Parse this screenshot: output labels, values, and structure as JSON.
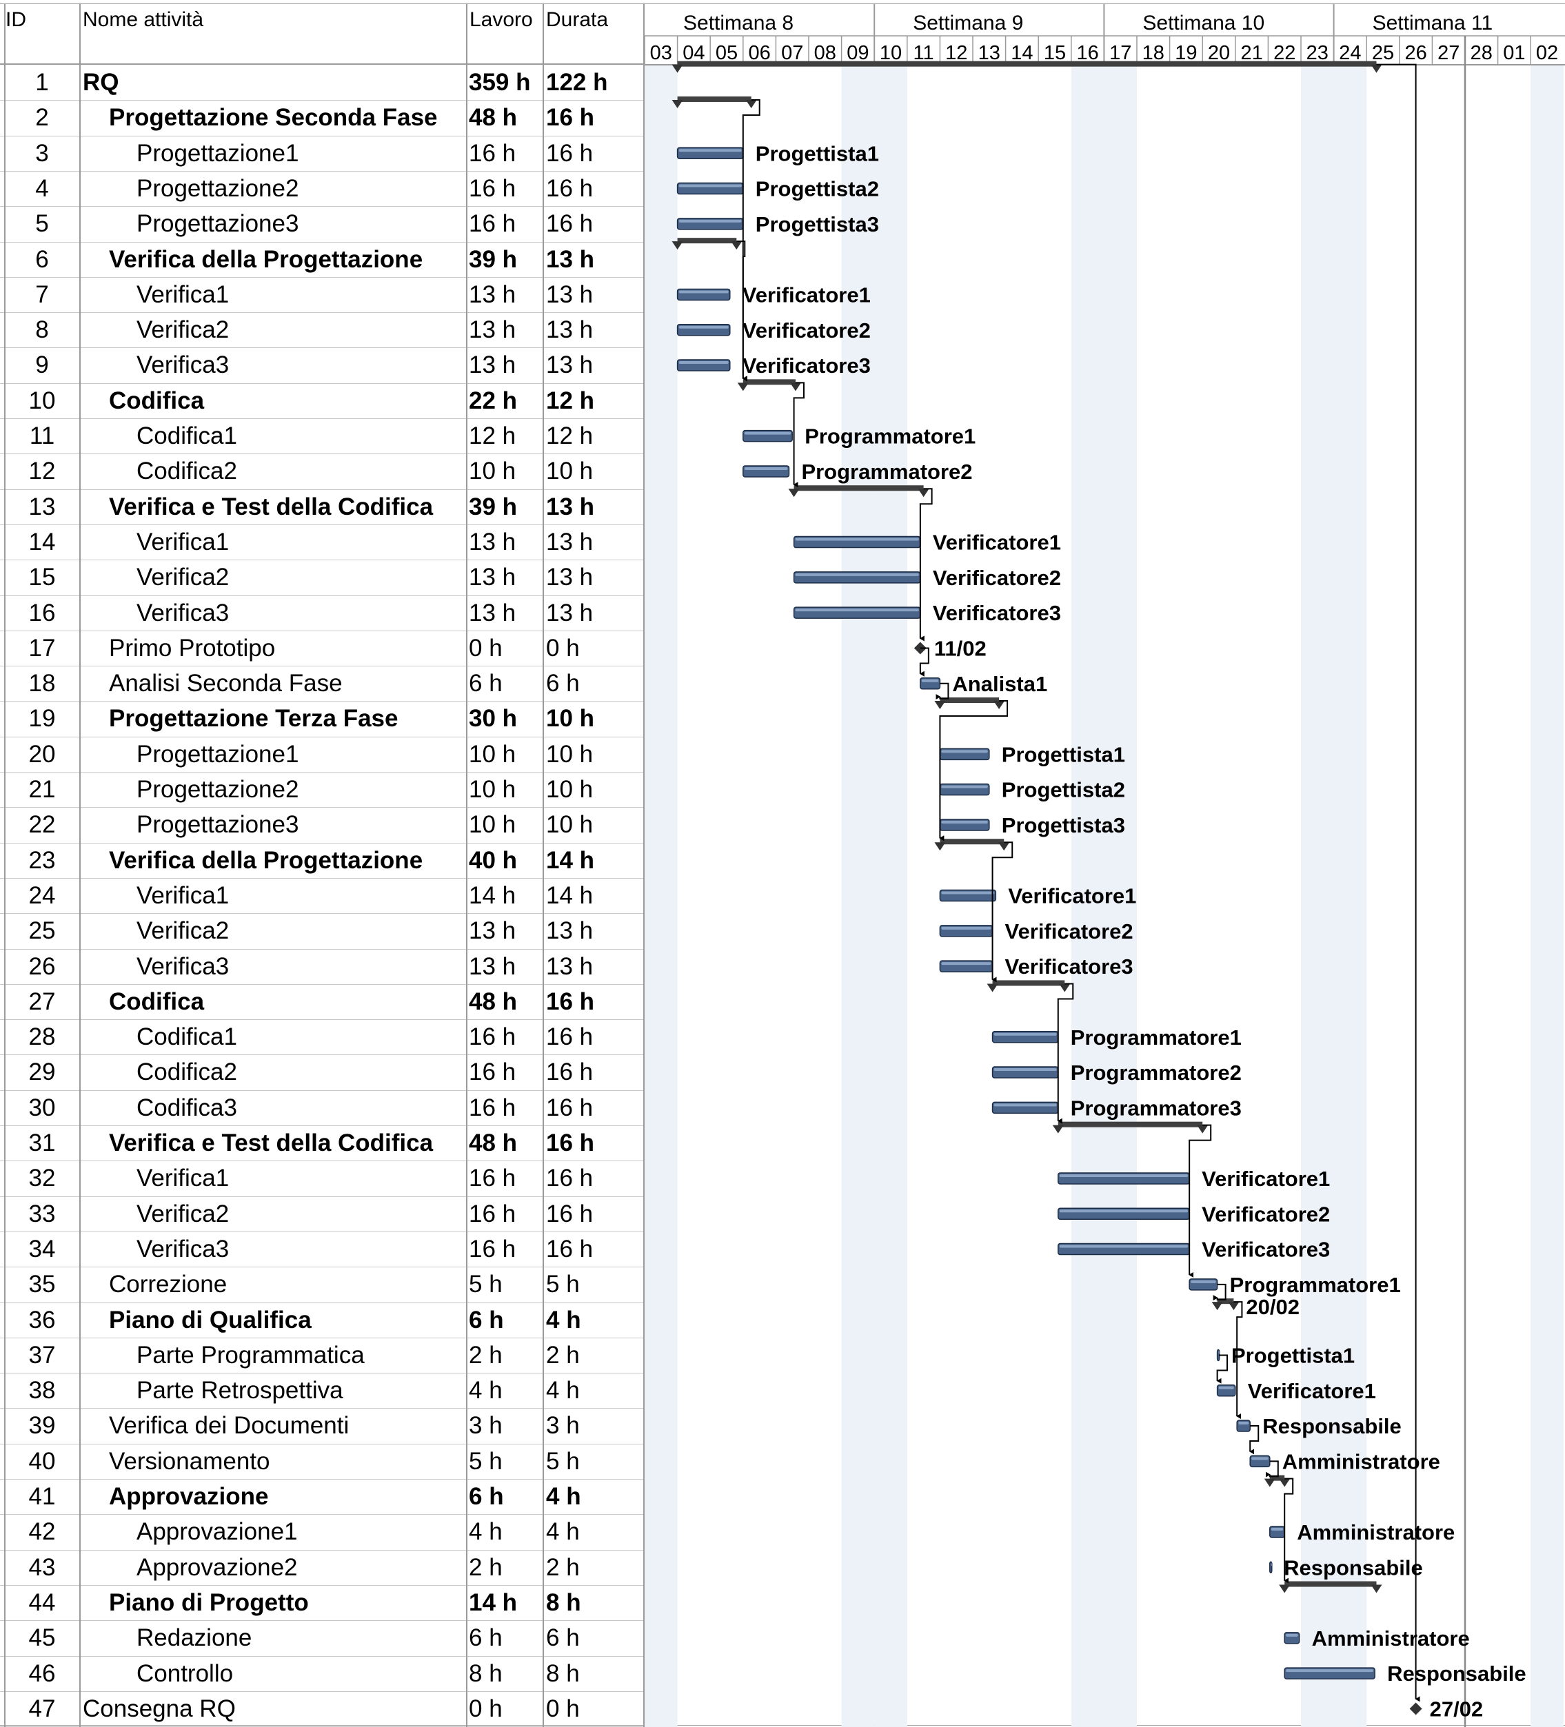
{
  "columns": {
    "id": "ID",
    "name": "Nome attività",
    "work": "Lavoro",
    "duration": "Durata"
  },
  "timeline": {
    "weeks": [
      "Settimana 8",
      "Settimana 9",
      "Settimana 10",
      "Settimana 11"
    ],
    "days": [
      "03",
      "04",
      "05",
      "06",
      "07",
      "08",
      "09",
      "10",
      "11",
      "12",
      "13",
      "14",
      "15",
      "16",
      "17",
      "18",
      "19",
      "20",
      "21",
      "22",
      "23",
      "24",
      "25",
      "26",
      "27",
      "28",
      "01",
      "02"
    ],
    "weekend_columns": [
      0,
      6,
      7,
      13,
      14,
      20,
      21,
      27
    ],
    "today_column": 25
  },
  "chart_data": {
    "type": "gantt",
    "x_unit": "day",
    "tasks": [
      {
        "id": "1",
        "name": "RQ",
        "work": "359 h",
        "duration": "122 h",
        "level": 0,
        "summary": true,
        "start": 1.0,
        "end": 22.3,
        "label": ""
      },
      {
        "id": "2",
        "name": "Progettazione Seconda Fase",
        "work": "48 h",
        "duration": "16 h",
        "level": 1,
        "summary": true,
        "start": 1.0,
        "end": 3.25,
        "label": ""
      },
      {
        "id": "3",
        "name": "Progettazione1",
        "work": "16 h",
        "duration": "16 h",
        "level": 2,
        "summary": false,
        "start": 1.0,
        "end": 3.0,
        "label": "Progettista1"
      },
      {
        "id": "4",
        "name": "Progettazione2",
        "work": "16 h",
        "duration": "16 h",
        "level": 2,
        "summary": false,
        "start": 1.0,
        "end": 3.0,
        "label": "Progettista2"
      },
      {
        "id": "5",
        "name": "Progettazione3",
        "work": "16 h",
        "duration": "16 h",
        "level": 2,
        "summary": false,
        "start": 1.0,
        "end": 3.0,
        "label": "Progettista3"
      },
      {
        "id": "6",
        "name": "Verifica della Progettazione",
        "work": "39 h",
        "duration": "13 h",
        "level": 1,
        "summary": true,
        "start": 1.0,
        "end": 2.8,
        "label": ""
      },
      {
        "id": "7",
        "name": "Verifica1",
        "work": "13 h",
        "duration": "13 h",
        "level": 2,
        "summary": false,
        "start": 1.0,
        "end": 2.6,
        "label": "Verificatore1"
      },
      {
        "id": "8",
        "name": "Verifica2",
        "work": "13 h",
        "duration": "13 h",
        "level": 2,
        "summary": false,
        "start": 1.0,
        "end": 2.6,
        "label": "Verificatore2"
      },
      {
        "id": "9",
        "name": "Verifica3",
        "work": "13 h",
        "duration": "13 h",
        "level": 2,
        "summary": false,
        "start": 1.0,
        "end": 2.6,
        "label": "Verificatore3"
      },
      {
        "id": "10",
        "name": "Codifica",
        "work": "22 h",
        "duration": "12 h",
        "level": 1,
        "summary": true,
        "start": 3.0,
        "end": 4.6,
        "label": ""
      },
      {
        "id": "11",
        "name": "Codifica1",
        "work": "12 h",
        "duration": "12 h",
        "level": 2,
        "summary": false,
        "start": 3.0,
        "end": 4.5,
        "label": "Programmatore1"
      },
      {
        "id": "12",
        "name": "Codifica2",
        "work": "10 h",
        "duration": "10 h",
        "level": 2,
        "summary": false,
        "start": 3.0,
        "end": 4.4,
        "label": "Programmatore2"
      },
      {
        "id": "13",
        "name": "Verifica e Test della Codifica",
        "work": "39 h",
        "duration": "13 h",
        "level": 1,
        "summary": true,
        "start": 4.55,
        "end": 8.5,
        "label": ""
      },
      {
        "id": "14",
        "name": "Verifica1",
        "work": "13 h",
        "duration": "13 h",
        "level": 2,
        "summary": false,
        "start": 4.55,
        "end": 8.4,
        "label": "Verificatore1"
      },
      {
        "id": "15",
        "name": "Verifica2",
        "work": "13 h",
        "duration": "13 h",
        "level": 2,
        "summary": false,
        "start": 4.55,
        "end": 8.4,
        "label": "Verificatore2"
      },
      {
        "id": "16",
        "name": "Verifica3",
        "work": "13 h",
        "duration": "13 h",
        "level": 2,
        "summary": false,
        "start": 4.55,
        "end": 8.4,
        "label": "Verificatore3"
      },
      {
        "id": "17",
        "name": "Primo Prototipo",
        "work": "0 h",
        "duration": "0 h",
        "level": 1,
        "summary": false,
        "milestone": true,
        "start": 8.4,
        "end": 8.4,
        "label": "11/02"
      },
      {
        "id": "18",
        "name": "Analisi Seconda Fase",
        "work": "6 h",
        "duration": "6 h",
        "level": 1,
        "summary": false,
        "start": 8.4,
        "end": 9.0,
        "label": "Analista1"
      },
      {
        "id": "19",
        "name": "Progettazione Terza Fase",
        "work": "30 h",
        "duration": "10 h",
        "level": 1,
        "summary": true,
        "start": 9.0,
        "end": 10.8,
        "label": ""
      },
      {
        "id": "20",
        "name": "Progettazione1",
        "work": "10 h",
        "duration": "10 h",
        "level": 2,
        "summary": false,
        "start": 9.0,
        "end": 10.5,
        "label": "Progettista1"
      },
      {
        "id": "21",
        "name": "Progettazione2",
        "work": "10 h",
        "duration": "10 h",
        "level": 2,
        "summary": false,
        "start": 9.0,
        "end": 10.5,
        "label": "Progettista2"
      },
      {
        "id": "22",
        "name": "Progettazione3",
        "work": "10 h",
        "duration": "10 h",
        "level": 2,
        "summary": false,
        "start": 9.0,
        "end": 10.5,
        "label": "Progettista3"
      },
      {
        "id": "23",
        "name": "Verifica della Progettazione",
        "work": "40 h",
        "duration": "14 h",
        "level": 1,
        "summary": true,
        "start": 9.0,
        "end": 10.95,
        "label": ""
      },
      {
        "id": "24",
        "name": "Verifica1",
        "work": "14 h",
        "duration": "14 h",
        "level": 2,
        "summary": false,
        "start": 9.0,
        "end": 10.7,
        "label": "Verificatore1"
      },
      {
        "id": "25",
        "name": "Verifica2",
        "work": "13 h",
        "duration": "13 h",
        "level": 2,
        "summary": false,
        "start": 9.0,
        "end": 10.6,
        "label": "Verificatore2"
      },
      {
        "id": "26",
        "name": "Verifica3",
        "work": "13 h",
        "duration": "13 h",
        "level": 2,
        "summary": false,
        "start": 9.0,
        "end": 10.6,
        "label": "Verificatore3"
      },
      {
        "id": "27",
        "name": "Codifica",
        "work": "48 h",
        "duration": "16 h",
        "level": 1,
        "summary": true,
        "start": 10.6,
        "end": 12.8,
        "label": ""
      },
      {
        "id": "28",
        "name": "Codifica1",
        "work": "16 h",
        "duration": "16 h",
        "level": 2,
        "summary": false,
        "start": 10.6,
        "end": 12.6,
        "label": "Programmatore1"
      },
      {
        "id": "29",
        "name": "Codifica2",
        "work": "16 h",
        "duration": "16 h",
        "level": 2,
        "summary": false,
        "start": 10.6,
        "end": 12.6,
        "label": "Programmatore2"
      },
      {
        "id": "30",
        "name": "Codifica3",
        "work": "16 h",
        "duration": "16 h",
        "level": 2,
        "summary": false,
        "start": 10.6,
        "end": 12.6,
        "label": "Programmatore3"
      },
      {
        "id": "31",
        "name": "Verifica e Test della Codifica",
        "work": "48 h",
        "duration": "16 h",
        "level": 1,
        "summary": true,
        "start": 12.6,
        "end": 17.0,
        "label": ""
      },
      {
        "id": "32",
        "name": "Verifica1",
        "work": "16 h",
        "duration": "16 h",
        "level": 2,
        "summary": false,
        "start": 12.6,
        "end": 16.6,
        "label": "Verificatore1"
      },
      {
        "id": "33",
        "name": "Verifica2",
        "work": "16 h",
        "duration": "16 h",
        "level": 2,
        "summary": false,
        "start": 12.6,
        "end": 16.6,
        "label": "Verificatore2"
      },
      {
        "id": "34",
        "name": "Verifica3",
        "work": "16 h",
        "duration": "16 h",
        "level": 2,
        "summary": false,
        "start": 12.6,
        "end": 16.6,
        "label": "Verificatore3"
      },
      {
        "id": "35",
        "name": "Correzione",
        "work": "5 h",
        "duration": "5 h",
        "level": 1,
        "summary": false,
        "start": 16.6,
        "end": 17.45,
        "label": "Programmatore1"
      },
      {
        "id": "36",
        "name": "Piano di Qualifica",
        "work": "6 h",
        "duration": "4 h",
        "level": 1,
        "summary": true,
        "start": 17.45,
        "end": 17.95,
        "label": "20/02"
      },
      {
        "id": "37",
        "name": "Parte Programmatica",
        "work": "2 h",
        "duration": "2 h",
        "level": 2,
        "summary": false,
        "start": 17.45,
        "end": 17.5,
        "label": "Progettista1"
      },
      {
        "id": "38",
        "name": "Parte Retrospettiva",
        "work": "4 h",
        "duration": "4 h",
        "level": 2,
        "summary": false,
        "start": 17.45,
        "end": 18.0,
        "label": "Verificatore1"
      },
      {
        "id": "39",
        "name": "Verifica dei Documenti",
        "work": "3 h",
        "duration": "3 h",
        "level": 1,
        "summary": false,
        "start": 18.05,
        "end": 18.45,
        "label": "Responsabile"
      },
      {
        "id": "40",
        "name": "Versionamento",
        "work": "5 h",
        "duration": "5 h",
        "level": 1,
        "summary": false,
        "start": 18.45,
        "end": 19.05,
        "label": "Amministratore"
      },
      {
        "id": "41",
        "name": "Approvazione",
        "work": "6 h",
        "duration": "4 h",
        "level": 1,
        "summary": true,
        "start": 19.05,
        "end": 19.5,
        "label": ""
      },
      {
        "id": "42",
        "name": "Approvazione1",
        "work": "4 h",
        "duration": "4 h",
        "level": 2,
        "summary": false,
        "start": 19.05,
        "end": 19.5,
        "label": "Amministratore"
      },
      {
        "id": "43",
        "name": "Approvazione2",
        "work": "2 h",
        "duration": "2 h",
        "level": 2,
        "summary": false,
        "start": 19.05,
        "end": 19.1,
        "label": "Responsabile"
      },
      {
        "id": "44",
        "name": "Piano di Progetto",
        "work": "14 h",
        "duration": "8 h",
        "level": 1,
        "summary": true,
        "start": 19.5,
        "end": 22.3,
        "label": ""
      },
      {
        "id": "45",
        "name": "Redazione",
        "work": "6 h",
        "duration": "6 h",
        "level": 2,
        "summary": false,
        "start": 19.5,
        "end": 19.95,
        "label": "Amministratore"
      },
      {
        "id": "46",
        "name": "Controllo",
        "work": "8 h",
        "duration": "8 h",
        "level": 2,
        "summary": false,
        "start": 19.5,
        "end": 22.25,
        "label": "Responsabile"
      },
      {
        "id": "47",
        "name": "Consegna RQ",
        "work": "0 h",
        "duration": "0 h",
        "level": 0,
        "summary": false,
        "milestone": true,
        "start": 23.5,
        "end": 23.5,
        "label": "27/02"
      }
    ],
    "colors": {
      "bar": "#4a6489",
      "bar_edge": "#1c2d47",
      "summary": "#404040",
      "weekend": "#edf1f8",
      "arrow": "#000000"
    }
  }
}
